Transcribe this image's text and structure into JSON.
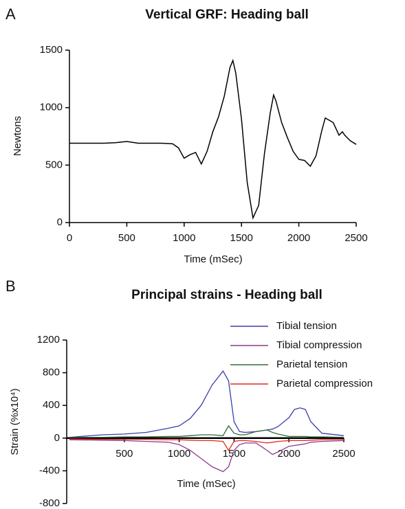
{
  "chart_data": [
    {
      "type": "line",
      "label": "A",
      "title": "Vertical GRF: Heading ball",
      "xlabel": "Time (mSec)",
      "ylabel": "Newtons",
      "x": [
        0,
        100,
        200,
        300,
        400,
        500,
        600,
        700,
        800,
        850,
        900,
        950,
        1000,
        1050,
        1100,
        1150,
        1200,
        1250,
        1300,
        1350,
        1400,
        1425,
        1450,
        1500,
        1550,
        1600,
        1650,
        1700,
        1750,
        1780,
        1800,
        1850,
        1900,
        1950,
        2000,
        2050,
        2100,
        2150,
        2200,
        2230,
        2300,
        2350,
        2380,
        2400,
        2450,
        2500
      ],
      "values": [
        690,
        690,
        690,
        690,
        695,
        705,
        690,
        690,
        690,
        688,
        685,
        650,
        560,
        590,
        610,
        510,
        620,
        790,
        920,
        1100,
        1350,
        1410,
        1300,
        900,
        350,
        40,
        150,
        600,
        950,
        1110,
        1060,
        870,
        740,
        620,
        550,
        540,
        490,
        580,
        800,
        910,
        870,
        760,
        790,
        760,
        710,
        680
      ],
      "color": "#000000",
      "xlim": [
        0,
        2500
      ],
      "xticks": [
        0,
        500,
        1000,
        1500,
        2000,
        2500
      ],
      "ylim": [
        0,
        1500
      ],
      "yticks": [
        0,
        500,
        1000,
        1500
      ]
    },
    {
      "type": "line",
      "label": "B",
      "title": "Principal strains - Heading ball",
      "xlabel": "Time (mSec)",
      "ylabel": "Strain (%x10⁴)",
      "x": [
        0,
        300,
        500,
        700,
        900,
        1000,
        1100,
        1200,
        1300,
        1400,
        1450,
        1500,
        1550,
        1600,
        1700,
        1800,
        1850,
        1900,
        2000,
        2050,
        2100,
        2150,
        2200,
        2300,
        2500
      ],
      "series": [
        {
          "name": "Tibial tension",
          "color": "#3c3ea8",
          "values": [
            10,
            40,
            50,
            70,
            120,
            150,
            240,
            400,
            650,
            820,
            700,
            200,
            80,
            70,
            80,
            100,
            110,
            140,
            250,
            350,
            370,
            350,
            200,
            60,
            30
          ]
        },
        {
          "name": "Tibial compression",
          "color": "#8e3a8c",
          "values": [
            -20,
            -25,
            -30,
            -40,
            -50,
            -80,
            -150,
            -250,
            -350,
            -410,
            -350,
            -150,
            -80,
            -60,
            -60,
            -150,
            -200,
            -170,
            -100,
            -90,
            -80,
            -70,
            -50,
            -40,
            -30
          ]
        },
        {
          "name": "Parietal tension",
          "color": "#2f6b3c",
          "values": [
            10,
            10,
            15,
            15,
            20,
            20,
            30,
            40,
            40,
            30,
            150,
            60,
            40,
            40,
            80,
            100,
            70,
            50,
            20,
            20,
            20,
            20,
            15,
            15,
            10
          ]
        },
        {
          "name": "Parietal compression",
          "color": "#e8251c",
          "values": [
            -10,
            -15,
            -15,
            -15,
            -20,
            -20,
            -25,
            -30,
            -30,
            -40,
            -150,
            -40,
            -30,
            -30,
            -40,
            -60,
            -50,
            -40,
            -30,
            -30,
            -30,
            -30,
            -25,
            -20,
            -15
          ]
        }
      ],
      "legend": "upper right",
      "xlim": [
        0,
        2500
      ],
      "xticks": [
        500,
        1000,
        1500,
        2000,
        2500
      ],
      "ylim": [
        -800,
        1200
      ],
      "yticks": [
        -800,
        -400,
        0,
        400,
        800,
        1200
      ]
    }
  ]
}
